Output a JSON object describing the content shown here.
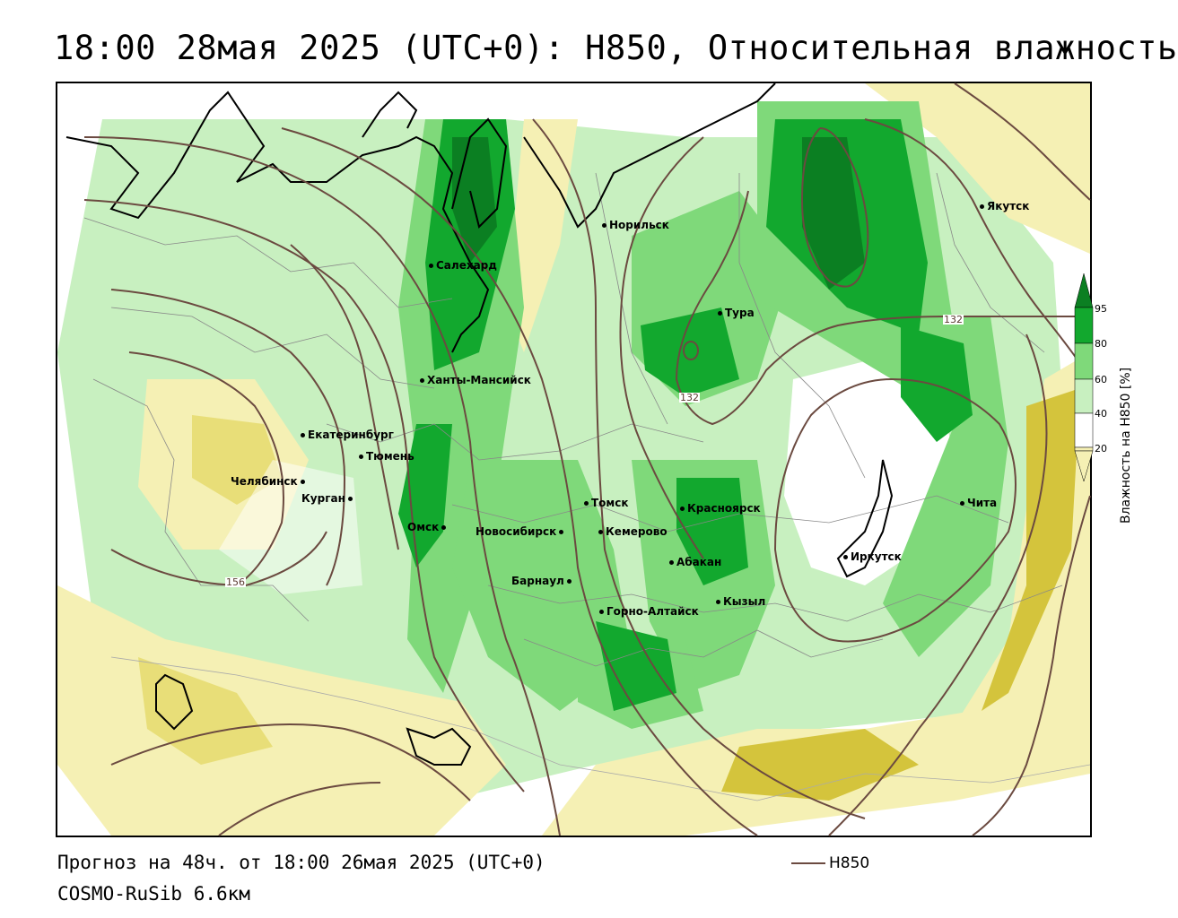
{
  "title": "18:00 28мая 2025 (UTC+0): H850, Относительная влажность",
  "forecast_line": "Прогноз на 48ч. от 18:00 26мая 2025 (UTC+0)",
  "model_line": "COSMO-RuSib 6.6км",
  "series_legend": {
    "label": "H850",
    "color": "#6b4a40"
  },
  "colorbar": {
    "title": "Влажность на H850 [%]",
    "ticks": [
      "95",
      "80",
      "60",
      "40",
      "20"
    ],
    "colors": {
      "very_dry": "#d4c43c",
      "dry": "#f5f0b4",
      "mid": "#ffffff",
      "moist": "#c8f0c0",
      "wet": "#7fd97a",
      "very_wet": "#12a82e",
      "saturated": "#0b7f22"
    }
  },
  "contour_labels": [
    "132",
    "132",
    "156"
  ],
  "cities": [
    {
      "name": "Норильск"
    },
    {
      "name": "Якутск"
    },
    {
      "name": "Салехард"
    },
    {
      "name": "Тура"
    },
    {
      "name": "Ханты-Мансийск"
    },
    {
      "name": "Екатеринбург"
    },
    {
      "name": "Тюмень"
    },
    {
      "name": "Челябинск"
    },
    {
      "name": "Курган"
    },
    {
      "name": "Омск"
    },
    {
      "name": "Томск"
    },
    {
      "name": "Красноярск"
    },
    {
      "name": "Новосибирск"
    },
    {
      "name": "Кемерово"
    },
    {
      "name": "Абакан"
    },
    {
      "name": "Барнаул"
    },
    {
      "name": "Горно-Алтайск"
    },
    {
      "name": "Кызыл"
    },
    {
      "name": "Иркутск"
    },
    {
      "name": "Чита"
    }
  ],
  "map_icons": [
    "coastline",
    "admin-borders",
    "geopotential-contours",
    "humidity-field"
  ]
}
